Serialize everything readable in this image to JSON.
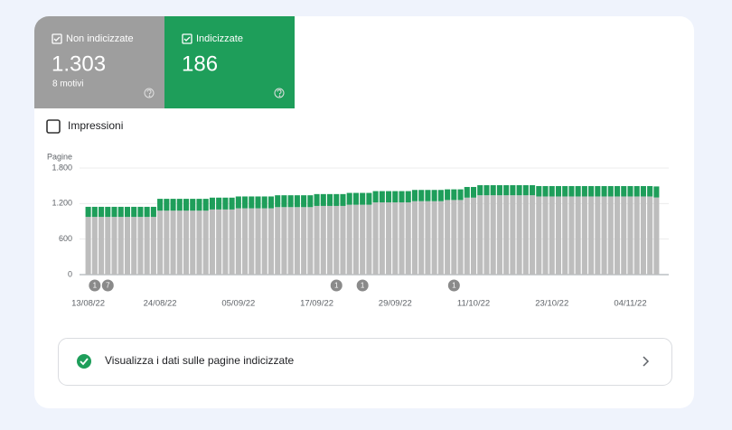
{
  "cards": [
    {
      "value": "1.303",
      "subtitle": "8 motivi"
    },
    {
      "value": "186"
    }
  ],
  "impressions_label": "Impressioni",
  "chart_data": {
    "type": "stacked-bar",
    "y_label": "Pagine",
    "categories": [
      "13/08/22",
      null,
      null,
      null,
      null,
      null,
      null,
      null,
      null,
      null,
      null,
      "24/08/22",
      null,
      null,
      null,
      null,
      null,
      null,
      null,
      null,
      null,
      null,
      null,
      "05/09/22",
      null,
      null,
      null,
      null,
      null,
      null,
      null,
      null,
      null,
      null,
      null,
      "17/09/22",
      null,
      null,
      null,
      null,
      null,
      null,
      null,
      null,
      null,
      null,
      null,
      "29/09/22",
      null,
      null,
      null,
      null,
      null,
      null,
      null,
      null,
      null,
      null,
      null,
      "11/10/22",
      null,
      null,
      null,
      null,
      null,
      null,
      null,
      null,
      null,
      null,
      null,
      "23/10/22",
      null,
      null,
      null,
      null,
      null,
      null,
      null,
      null,
      null,
      null,
      null,
      "04/11/22",
      null,
      null,
      null,
      null
    ],
    "series": [
      {
        "name": "Non indicizzate",
        "color": "#bdbdbd",
        "values": [
          975,
          975,
          975,
          975,
          975,
          975,
          975,
          975,
          975,
          975,
          975,
          1080,
          1080,
          1080,
          1080,
          1080,
          1080,
          1080,
          1080,
          1100,
          1100,
          1100,
          1100,
          1120,
          1120,
          1120,
          1120,
          1120,
          1120,
          1140,
          1140,
          1140,
          1140,
          1140,
          1140,
          1160,
          1160,
          1160,
          1160,
          1160,
          1180,
          1180,
          1180,
          1180,
          1220,
          1220,
          1220,
          1220,
          1220,
          1220,
          1240,
          1240,
          1240,
          1240,
          1240,
          1260,
          1260,
          1260,
          1300,
          1300,
          1340,
          1340,
          1340,
          1340,
          1340,
          1340,
          1340,
          1340,
          1340,
          1320,
          1320,
          1320,
          1320,
          1320,
          1320,
          1320,
          1320,
          1320,
          1320,
          1320,
          1320,
          1320,
          1320,
          1320,
          1320,
          1320,
          1320,
          1303
        ]
      },
      {
        "name": "Indicizzate",
        "color": "#1e9e5a",
        "values": [
          170,
          170,
          170,
          170,
          170,
          170,
          170,
          170,
          170,
          170,
          170,
          200,
          200,
          200,
          200,
          200,
          200,
          200,
          200,
          200,
          200,
          200,
          200,
          200,
          200,
          200,
          200,
          200,
          200,
          200,
          200,
          200,
          200,
          200,
          200,
          200,
          200,
          200,
          200,
          200,
          200,
          200,
          200,
          200,
          190,
          190,
          190,
          190,
          190,
          190,
          190,
          190,
          190,
          190,
          190,
          180,
          180,
          180,
          180,
          180,
          170,
          170,
          170,
          170,
          170,
          170,
          170,
          170,
          170,
          175,
          175,
          175,
          175,
          175,
          175,
          175,
          175,
          175,
          175,
          175,
          175,
          175,
          175,
          175,
          175,
          175,
          175,
          186
        ]
      }
    ],
    "ylim": [
      0,
      1800
    ],
    "yticks": [
      {
        "value": 0,
        "label": "0"
      },
      {
        "value": 600,
        "label": "600"
      },
      {
        "value": 1200,
        "label": "1.200"
      },
      {
        "value": 1800,
        "label": "1.800"
      }
    ],
    "grid": true,
    "annotations": [
      "1",
      "7",
      "1",
      "1",
      "1"
    ]
  },
  "footer_link": "Visualizza i dati sulle pagine indicizzate"
}
